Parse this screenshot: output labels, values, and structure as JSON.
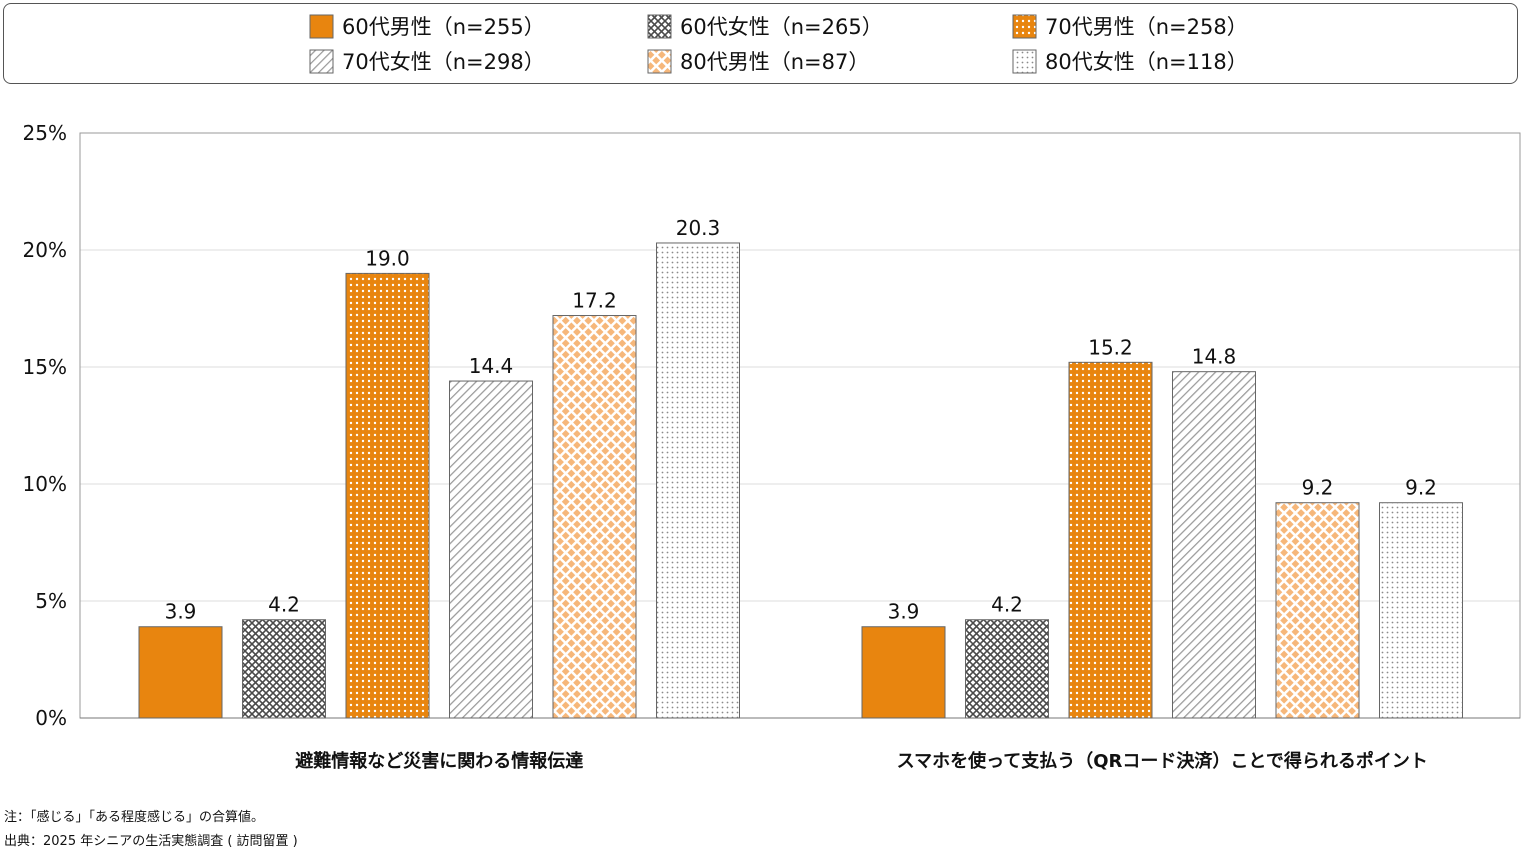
{
  "chart_data": {
    "type": "bar",
    "title": "",
    "xlabel": "",
    "ylabel": "",
    "ylim": [
      0,
      25
    ],
    "yticks": [
      0,
      5,
      10,
      15,
      20,
      25
    ],
    "ytick_labels": [
      "0%",
      "5%",
      "10%",
      "15%",
      "20%",
      "25%"
    ],
    "grid": true,
    "legend_position": "top",
    "categories": [
      "避難情報など災害に関わる情報伝達",
      "スマホを使って支払う（QRコード決済）ことで得られるポイント"
    ],
    "series": [
      {
        "name": "60代男性（n=255）",
        "values": [
          3.9,
          3.9
        ],
        "labels": [
          "3.9",
          "3.9"
        ],
        "color": "#E8850F",
        "pattern": "solid"
      },
      {
        "name": "60代女性（n=265）",
        "values": [
          4.2,
          4.2
        ],
        "labels": [
          "4.2",
          "4.2"
        ],
        "color": "#4a4a4a",
        "pattern": "crosshatch"
      },
      {
        "name": "70代男性（n=258）",
        "values": [
          19.0,
          15.2
        ],
        "labels": [
          "19.0",
          "15.2"
        ],
        "color": "#E8850F",
        "pattern": "dots"
      },
      {
        "name": "70代女性（n=298）",
        "values": [
          14.4,
          14.8
        ],
        "labels": [
          "14.4",
          "14.8"
        ],
        "color": "#9a9a9a",
        "pattern": "diagonal"
      },
      {
        "name": "80代男性（n=87）",
        "values": [
          17.2,
          9.2
        ],
        "labels": [
          "17.2",
          "9.2"
        ],
        "color": "#F6B77A",
        "pattern": "lattice"
      },
      {
        "name": "80代女性（n=118）",
        "values": [
          20.3,
          9.2
        ],
        "labels": [
          "20.3",
          "9.2"
        ],
        "color": "#8a8a8a",
        "pattern": "sparse-dots"
      }
    ]
  },
  "notes": {
    "note": "注：「感じる」「ある程度感じる」の合算値。",
    "source": "出典：2025 年シニアの生活実態調査 ( 訪問留置 )"
  }
}
